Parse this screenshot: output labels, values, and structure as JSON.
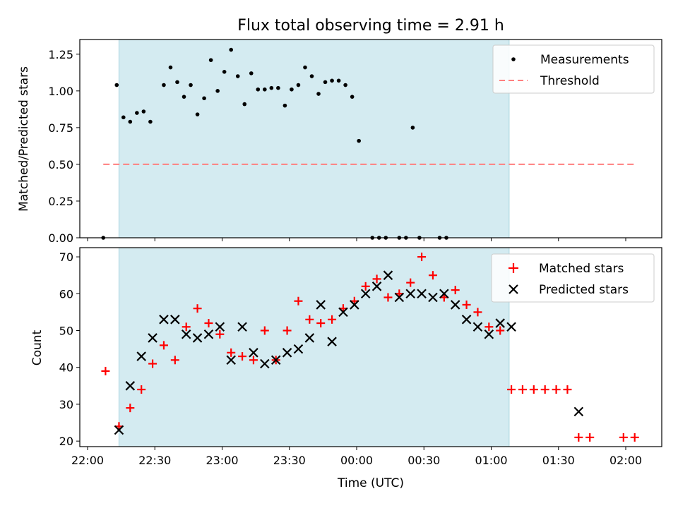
{
  "chart_data": [
    {
      "type": "scatter",
      "title": "Flux total observing time = 2.91 h",
      "ylabel": "Matched/Predicted stars",
      "ylim": [
        0,
        1.35
      ],
      "yticks": [
        0.0,
        0.25,
        0.5,
        0.75,
        1.0,
        1.25
      ],
      "ytick_labels": [
        "0.00",
        "0.25",
        "0.50",
        "0.75",
        "1.00",
        "1.25"
      ],
      "xlim": [
        "22:08",
        "02:10"
      ],
      "shaded_span": [
        "22:14",
        "01:08"
      ],
      "shade_color": "#d4ebf1",
      "legend_location": "upper right",
      "series": [
        {
          "name": "Measurements",
          "marker": "dot",
          "color": "#000000",
          "points": [
            [
              "22:07",
              0.0
            ],
            [
              "22:13",
              1.04
            ],
            [
              "22:16",
              0.82
            ],
            [
              "22:19",
              0.79
            ],
            [
              "22:22",
              0.85
            ],
            [
              "22:25",
              0.86
            ],
            [
              "22:28",
              0.79
            ],
            [
              "22:34",
              1.04
            ],
            [
              "22:37",
              1.16
            ],
            [
              "22:40",
              1.06
            ],
            [
              "22:43",
              0.96
            ],
            [
              "22:46",
              1.04
            ],
            [
              "22:49",
              0.84
            ],
            [
              "22:52",
              0.95
            ],
            [
              "22:55",
              1.21
            ],
            [
              "22:58",
              1.0
            ],
            [
              "23:01",
              1.13
            ],
            [
              "23:04",
              1.28
            ],
            [
              "23:07",
              1.1
            ],
            [
              "23:10",
              0.91
            ],
            [
              "23:13",
              1.12
            ],
            [
              "23:16",
              1.01
            ],
            [
              "23:19",
              1.01
            ],
            [
              "23:22",
              1.02
            ],
            [
              "23:25",
              1.02
            ],
            [
              "23:28",
              0.9
            ],
            [
              "23:31",
              1.01
            ],
            [
              "23:34",
              1.04
            ],
            [
              "23:37",
              1.16
            ],
            [
              "23:40",
              1.1
            ],
            [
              "23:43",
              0.98
            ],
            [
              "23:46",
              1.06
            ],
            [
              "23:49",
              1.07
            ],
            [
              "23:52",
              1.07
            ],
            [
              "23:55",
              1.04
            ],
            [
              "23:58",
              0.96
            ],
            [
              "00:01",
              0.66
            ],
            [
              "00:07",
              0.0
            ],
            [
              "00:10",
              0.0
            ],
            [
              "00:13",
              0.0
            ],
            [
              "00:19",
              0.0
            ],
            [
              "00:22",
              0.0
            ],
            [
              "00:25",
              0.75
            ],
            [
              "00:28",
              0.0
            ],
            [
              "00:37",
              0.0
            ],
            [
              "00:40",
              0.0
            ]
          ]
        },
        {
          "name": "Threshold",
          "marker": "dashed-line",
          "color": "#ff7f7f",
          "points": [
            [
              "22:07",
              0.5
            ],
            [
              "02:05",
              0.5
            ]
          ]
        }
      ]
    },
    {
      "type": "scatter",
      "ylabel": "Count",
      "xlabel": "Time (UTC)",
      "ylim": [
        18.5,
        72.5
      ],
      "yticks": [
        20,
        30,
        40,
        50,
        60,
        70
      ],
      "xlim": [
        "22:08",
        "02:10"
      ],
      "xticks": [
        "22:00",
        "22:30",
        "23:00",
        "23:30",
        "00:00",
        "00:30",
        "01:00",
        "01:30",
        "02:00"
      ],
      "shaded_span": [
        "22:14",
        "01:08"
      ],
      "legend_location": "upper right",
      "series": [
        {
          "name": "Matched stars",
          "marker": "plus",
          "color": "#ff0000",
          "points": [
            [
              "22:08",
              39
            ],
            [
              "22:14",
              24
            ],
            [
              "22:19",
              29
            ],
            [
              "22:24",
              34
            ],
            [
              "22:29",
              41
            ],
            [
              "22:34",
              46
            ],
            [
              "22:39",
              42
            ],
            [
              "22:44",
              51
            ],
            [
              "22:49",
              56
            ],
            [
              "22:54",
              52
            ],
            [
              "22:59",
              49
            ],
            [
              "23:04",
              44
            ],
            [
              "23:09",
              43
            ],
            [
              "23:14",
              42
            ],
            [
              "23:19",
              50
            ],
            [
              "23:24",
              42
            ],
            [
              "23:29",
              50
            ],
            [
              "23:34",
              58
            ],
            [
              "23:39",
              53
            ],
            [
              "23:44",
              52
            ],
            [
              "23:49",
              53
            ],
            [
              "23:54",
              56
            ],
            [
              "23:59",
              58
            ],
            [
              "00:04",
              62
            ],
            [
              "00:09",
              64
            ],
            [
              "00:14",
              59
            ],
            [
              "00:19",
              60
            ],
            [
              "00:24",
              63
            ],
            [
              "00:29",
              70
            ],
            [
              "00:34",
              65
            ],
            [
              "00:39",
              59
            ],
            [
              "00:44",
              61
            ],
            [
              "00:49",
              57
            ],
            [
              "00:54",
              55
            ],
            [
              "00:59",
              51
            ],
            [
              "01:04",
              50
            ],
            [
              "01:09",
              34
            ],
            [
              "01:14",
              34
            ],
            [
              "01:19",
              34
            ],
            [
              "01:24",
              34
            ],
            [
              "01:29",
              34
            ],
            [
              "01:34",
              34
            ],
            [
              "01:39",
              21
            ],
            [
              "01:44",
              21
            ],
            [
              "01:59",
              21
            ],
            [
              "02:04",
              21
            ]
          ]
        },
        {
          "name": "Predicted stars",
          "marker": "x",
          "color": "#000000",
          "points": [
            [
              "22:14",
              23
            ],
            [
              "22:19",
              35
            ],
            [
              "22:24",
              43
            ],
            [
              "22:29",
              48
            ],
            [
              "22:34",
              53
            ],
            [
              "22:39",
              53
            ],
            [
              "22:44",
              49
            ],
            [
              "22:49",
              48
            ],
            [
              "22:54",
              49
            ],
            [
              "22:59",
              51
            ],
            [
              "23:04",
              42
            ],
            [
              "23:09",
              51
            ],
            [
              "23:14",
              44
            ],
            [
              "23:19",
              41
            ],
            [
              "23:24",
              42
            ],
            [
              "23:29",
              44
            ],
            [
              "23:34",
              45
            ],
            [
              "23:39",
              48
            ],
            [
              "23:44",
              57
            ],
            [
              "23:49",
              47
            ],
            [
              "23:54",
              55
            ],
            [
              "23:59",
              57
            ],
            [
              "00:04",
              60
            ],
            [
              "00:09",
              62
            ],
            [
              "00:14",
              65
            ],
            [
              "00:19",
              59
            ],
            [
              "00:24",
              60
            ],
            [
              "00:29",
              60
            ],
            [
              "00:34",
              59
            ],
            [
              "00:39",
              60
            ],
            [
              "00:44",
              57
            ],
            [
              "00:49",
              53
            ],
            [
              "00:54",
              51
            ],
            [
              "00:59",
              49
            ],
            [
              "01:04",
              52
            ],
            [
              "01:09",
              51
            ],
            [
              "01:39",
              28
            ]
          ]
        }
      ]
    }
  ]
}
